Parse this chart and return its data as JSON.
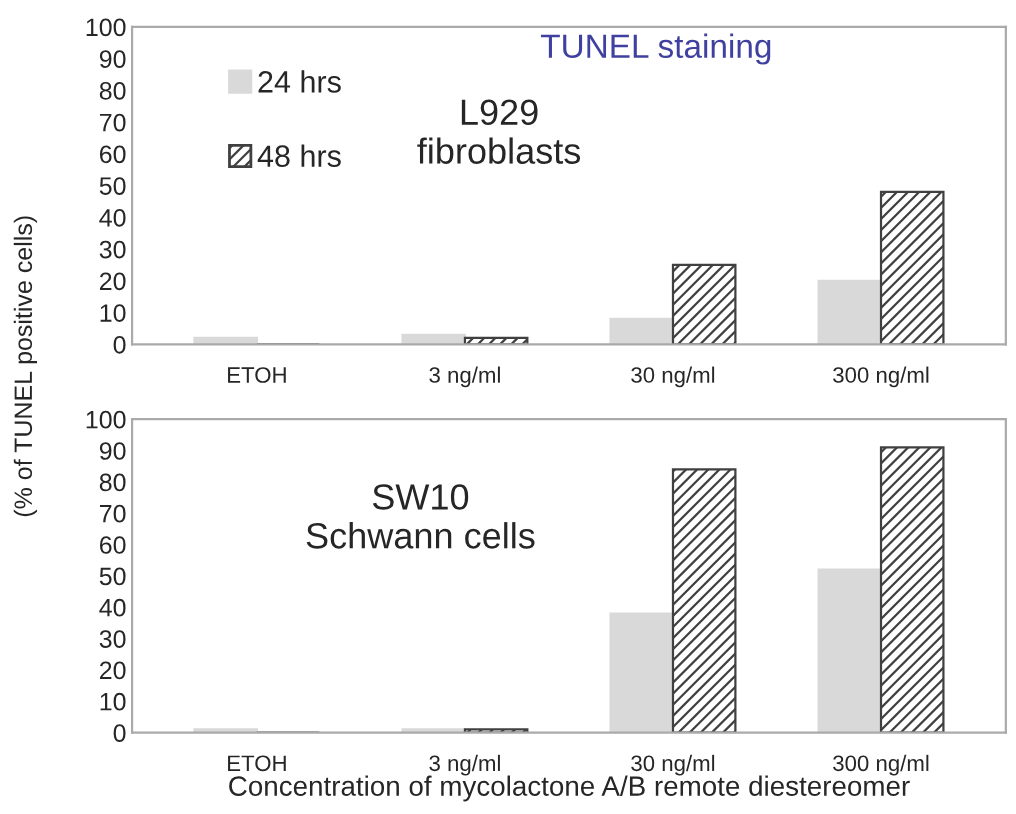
{
  "chart_data": [
    {
      "type": "bar",
      "title": "TUNEL staining",
      "ylabel": "(% of TUNEL positive cells)",
      "annotations": [
        "L929\nfibroblasts"
      ],
      "categories": [
        "ETOH",
        "3 ng/ml",
        "30 ng/ml",
        "300 ng/ml"
      ],
      "series": [
        {
          "name": "24 hrs",
          "color": "#d9d9d9",
          "values": [
            2,
            3,
            8,
            20
          ]
        },
        {
          "name": "48 hrs",
          "color": "#404040",
          "values": [
            0,
            2,
            25,
            48
          ]
        }
      ],
      "ylim": [
        0,
        100
      ],
      "yticks": [
        0,
        10,
        20,
        30,
        40,
        50,
        60,
        70,
        80,
        90,
        100
      ],
      "legend": "top left",
      "grid": false
    },
    {
      "type": "bar",
      "xlabel": "Concentration of mycolactone A/B remote diestereomer",
      "annotations": [
        "SW10\nSchwann cells"
      ],
      "categories": [
        "ETOH",
        "3 ng/ml",
        "30 ng/ml",
        "300 ng/ml"
      ],
      "series": [
        {
          "color": "#d9d9d9",
          "values": [
            1,
            1,
            38,
            52
          ]
        },
        {
          "color": "#404040",
          "values": [
            0,
            1,
            84,
            91
          ]
        }
      ],
      "ylim": [
        0,
        100
      ],
      "yticks": [
        0,
        10,
        20,
        30,
        40,
        50,
        60,
        70,
        80,
        90,
        100
      ],
      "legend": false,
      "grid": false
    }
  ]
}
